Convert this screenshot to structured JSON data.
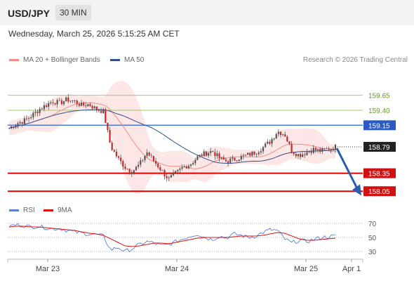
{
  "header": {
    "symbol": "USD/JPY",
    "timeframe": "30 MIN"
  },
  "timestamp": "Wednesday, March 25, 2026 5:15:25 AM CET",
  "legend": {
    "items": [
      {
        "label": "MA 20 + Bollinger Bands",
        "color": "#f28b82"
      },
      {
        "label": "MA 50",
        "color": "#2f4f8f"
      }
    ],
    "copyright": "Research © 2026 Trading Central"
  },
  "rsi_legend": {
    "items": [
      {
        "label": "RSI",
        "color": "#5b7fd6"
      },
      {
        "label": "9MA",
        "color": "#dd1111"
      }
    ]
  },
  "chart_data": [
    {
      "type": "candlestick",
      "ylim": [
        157.9,
        159.95
      ],
      "current_price": "158.79",
      "levels": [
        {
          "label": "159.65",
          "value": 159.65,
          "kind": "resistance"
        },
        {
          "label": "159.40",
          "value": 159.4,
          "kind": "resistance"
        },
        {
          "label": "159.15",
          "value": 159.15,
          "kind": "pivot"
        },
        {
          "label": "158.35",
          "value": 158.35,
          "kind": "support"
        },
        {
          "label": "158.05",
          "value": 158.05,
          "kind": "support"
        }
      ],
      "x_ticks": [
        "Mar 23",
        "Mar 24",
        "Mar 25",
        "Apr 1"
      ],
      "close_path": [
        159.1,
        159.18,
        159.22,
        159.3,
        159.4,
        159.48,
        159.55,
        159.52,
        159.58,
        159.55,
        159.48,
        159.5,
        159.42,
        159.38,
        158.8,
        158.6,
        158.45,
        158.38,
        158.5,
        158.7,
        158.55,
        158.4,
        158.25,
        158.35,
        158.45,
        158.5,
        158.62,
        158.68,
        158.72,
        158.6,
        158.55,
        158.58,
        158.62,
        158.66,
        158.7,
        158.78,
        158.88,
        159.05,
        159.0,
        158.72,
        158.65,
        158.7,
        158.75,
        158.72,
        158.76,
        158.79
      ],
      "projection": {
        "from": 158.79,
        "to": 158.05,
        "direction": "down"
      }
    },
    {
      "type": "line",
      "series": [
        {
          "name": "RSI",
          "color": "#5b7fd6"
        },
        {
          "name": "9MA",
          "color": "#dd1111"
        }
      ],
      "ylim": [
        20,
        80
      ],
      "y_ticks": [
        "70",
        "50",
        "30"
      ],
      "rsi_path": [
        66,
        68,
        67,
        65,
        66,
        64,
        62,
        63,
        60,
        58,
        56,
        55,
        54,
        52,
        32,
        36,
        30,
        34,
        40,
        44,
        42,
        38,
        40,
        44,
        48,
        52,
        55,
        50,
        47,
        52,
        49,
        55,
        53,
        50,
        52,
        57,
        61,
        60,
        48,
        42,
        46,
        44,
        47,
        50,
        51,
        52
      ],
      "ma9_path": [
        65,
        66,
        66,
        65,
        65,
        64,
        63,
        62,
        61,
        60,
        58,
        56,
        55,
        53,
        48,
        43,
        38,
        37,
        38,
        40,
        42,
        42,
        41,
        43,
        45,
        47,
        49,
        50,
        50,
        50,
        50,
        51,
        52,
        52,
        52,
        53,
        55,
        57,
        56,
        52,
        48,
        46,
        46,
        47,
        48,
        49
      ]
    }
  ]
}
